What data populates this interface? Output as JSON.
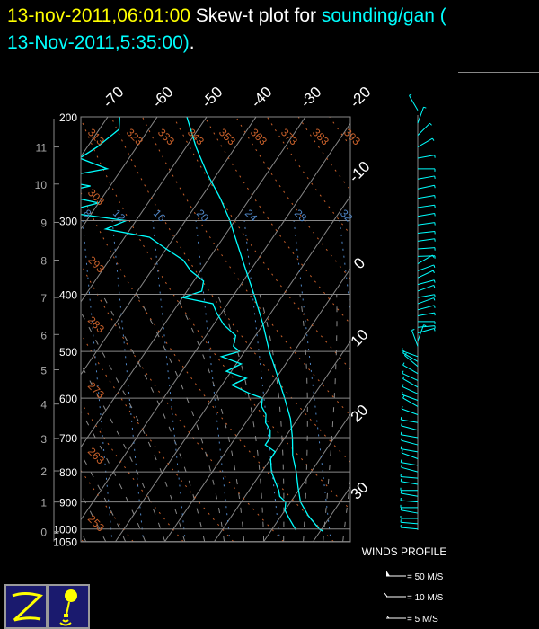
{
  "header": {
    "datetime": "13-nov-2011,06:01:00",
    "title_prefix": "Skew-t plot for",
    "station": "sounding/gan (",
    "station_time": "13-Nov-2011,5:35:00)",
    "period": "."
  },
  "colors": {
    "datetime": "#ffff00",
    "station": "#00ffff",
    "sounding": "#00ffff",
    "isobar": "#888888",
    "isotherm": "#888888",
    "dry_adiabat": "#c8602a",
    "mixing_ratio": "#4f86c6",
    "moist_adiabat": "#8a8a8a"
  },
  "chart_data": {
    "type": "line",
    "subtype": "skew-t log-p",
    "y_scale": "log (pressure, inverted)",
    "ylim_hpa": [
      1050,
      200
    ],
    "grid": true,
    "pressure_ticks": [
      "200",
      "300",
      "400",
      "500",
      "600",
      "700",
      "800",
      "900",
      "1000",
      "1050"
    ],
    "height_ticks_km": [
      "0",
      "1",
      "2",
      "3",
      "4",
      "5",
      "6",
      "7",
      "8",
      "9",
      "10",
      "11"
    ],
    "height_tick_pressures": [
      1010,
      900,
      797,
      702,
      614,
      537,
      468,
      405,
      350,
      302,
      260,
      225
    ],
    "isotherm_labels_top": [
      "-70",
      "-60",
      "-50",
      "-40",
      "-30",
      "-20"
    ],
    "isotherm_labels_right": [
      "-10",
      "0",
      "10",
      "20",
      "30"
    ],
    "dry_adiabat_labels": [
      "253",
      "263",
      "273",
      "283",
      "293",
      "303",
      "313",
      "323",
      "333",
      "343",
      "353",
      "363",
      "373",
      "383",
      "393"
    ],
    "mixing_ratio_labels": [
      "8",
      "12",
      "16",
      "20",
      "24",
      "28",
      "32"
    ],
    "series": [
      {
        "kind": "temperature",
        "points": [
          [
            200,
            -54
          ],
          [
            225,
            -48
          ],
          [
            250,
            -42
          ],
          [
            275,
            -36
          ],
          [
            300,
            -31
          ],
          [
            350,
            -23
          ],
          [
            400,
            -16
          ],
          [
            450,
            -10
          ],
          [
            500,
            -5
          ],
          [
            550,
            0
          ],
          [
            600,
            4.5
          ],
          [
            650,
            8.5
          ],
          [
            700,
            11.5
          ],
          [
            750,
            14
          ],
          [
            800,
            17
          ],
          [
            850,
            19.5
          ],
          [
            900,
            22
          ],
          [
            950,
            25.5
          ],
          [
            1000,
            29.5
          ],
          [
            1008,
            30.5
          ]
        ]
      },
      {
        "kind": "dewpoint",
        "points": [
          [
            200,
            -67.6
          ],
          [
            210,
            -66
          ],
          [
            225,
            -68
          ],
          [
            235,
            -70
          ],
          [
            245,
            -63
          ],
          [
            255,
            -73
          ],
          [
            262,
            -64
          ],
          [
            270,
            -70
          ],
          [
            280,
            -60
          ],
          [
            290,
            -66
          ],
          [
            300,
            -52
          ],
          [
            310,
            -55
          ],
          [
            320,
            -45
          ],
          [
            335,
            -40
          ],
          [
            350,
            -35
          ],
          [
            365,
            -32
          ],
          [
            380,
            -28
          ],
          [
            395,
            -27
          ],
          [
            405,
            -30
          ],
          [
            415,
            -23
          ],
          [
            430,
            -21
          ],
          [
            450,
            -18
          ],
          [
            470,
            -14
          ],
          [
            490,
            -13
          ],
          [
            500,
            -11
          ],
          [
            510,
            -14
          ],
          [
            525,
            -9
          ],
          [
            540,
            -11
          ],
          [
            555,
            -6
          ],
          [
            570,
            -8
          ],
          [
            590,
            -3
          ],
          [
            600,
            0
          ],
          [
            620,
            1
          ],
          [
            640,
            3
          ],
          [
            660,
            4
          ],
          [
            680,
            6
          ],
          [
            700,
            7
          ],
          [
            720,
            7
          ],
          [
            740,
            10
          ],
          [
            760,
            10
          ],
          [
            780,
            11
          ],
          [
            800,
            12
          ],
          [
            830,
            14
          ],
          [
            860,
            16
          ],
          [
            880,
            17
          ],
          [
            900,
            19
          ],
          [
            930,
            20
          ],
          [
            960,
            22
          ],
          [
            990,
            24
          ],
          [
            1005,
            25
          ]
        ]
      }
    ]
  },
  "winds": {
    "title": "WINDS PROFILE",
    "legend": [
      "= 50 M/S",
      "= 10 M/S",
      "= 5 M/S"
    ],
    "barbs_dir_deg": [
      [
        195,
        330
      ],
      [
        205,
        20
      ],
      [
        215,
        45
      ],
      [
        225,
        60
      ],
      [
        235,
        80
      ],
      [
        245,
        90
      ],
      [
        255,
        80
      ],
      [
        265,
        78
      ],
      [
        275,
        80
      ],
      [
        285,
        82
      ],
      [
        295,
        80
      ],
      [
        305,
        82
      ],
      [
        315,
        84
      ],
      [
        325,
        82
      ],
      [
        335,
        86
      ],
      [
        345,
        88
      ],
      [
        355,
        60
      ],
      [
        365,
        70
      ],
      [
        375,
        65
      ],
      [
        385,
        75
      ],
      [
        395,
        70
      ],
      [
        405,
        80
      ],
      [
        415,
        70
      ],
      [
        425,
        75
      ],
      [
        435,
        80
      ],
      [
        445,
        90
      ],
      [
        455,
        85
      ],
      [
        465,
        75
      ],
      [
        480,
        20
      ],
      [
        490,
        340
      ],
      [
        510,
        290
      ],
      [
        520,
        300
      ],
      [
        530,
        310
      ],
      [
        545,
        300
      ],
      [
        560,
        295
      ],
      [
        575,
        300
      ],
      [
        590,
        295
      ],
      [
        605,
        290
      ],
      [
        620,
        300
      ],
      [
        640,
        290
      ],
      [
        660,
        280
      ],
      [
        680,
        285
      ],
      [
        700,
        280
      ],
      [
        720,
        285
      ],
      [
        740,
        280
      ],
      [
        760,
        290
      ],
      [
        780,
        280
      ],
      [
        800,
        285
      ],
      [
        820,
        275
      ],
      [
        840,
        280
      ],
      [
        860,
        270
      ],
      [
        880,
        280
      ],
      [
        900,
        275
      ],
      [
        920,
        270
      ],
      [
        940,
        280
      ],
      [
        960,
        270
      ],
      [
        980,
        275
      ],
      [
        1000,
        275
      ]
    ]
  }
}
